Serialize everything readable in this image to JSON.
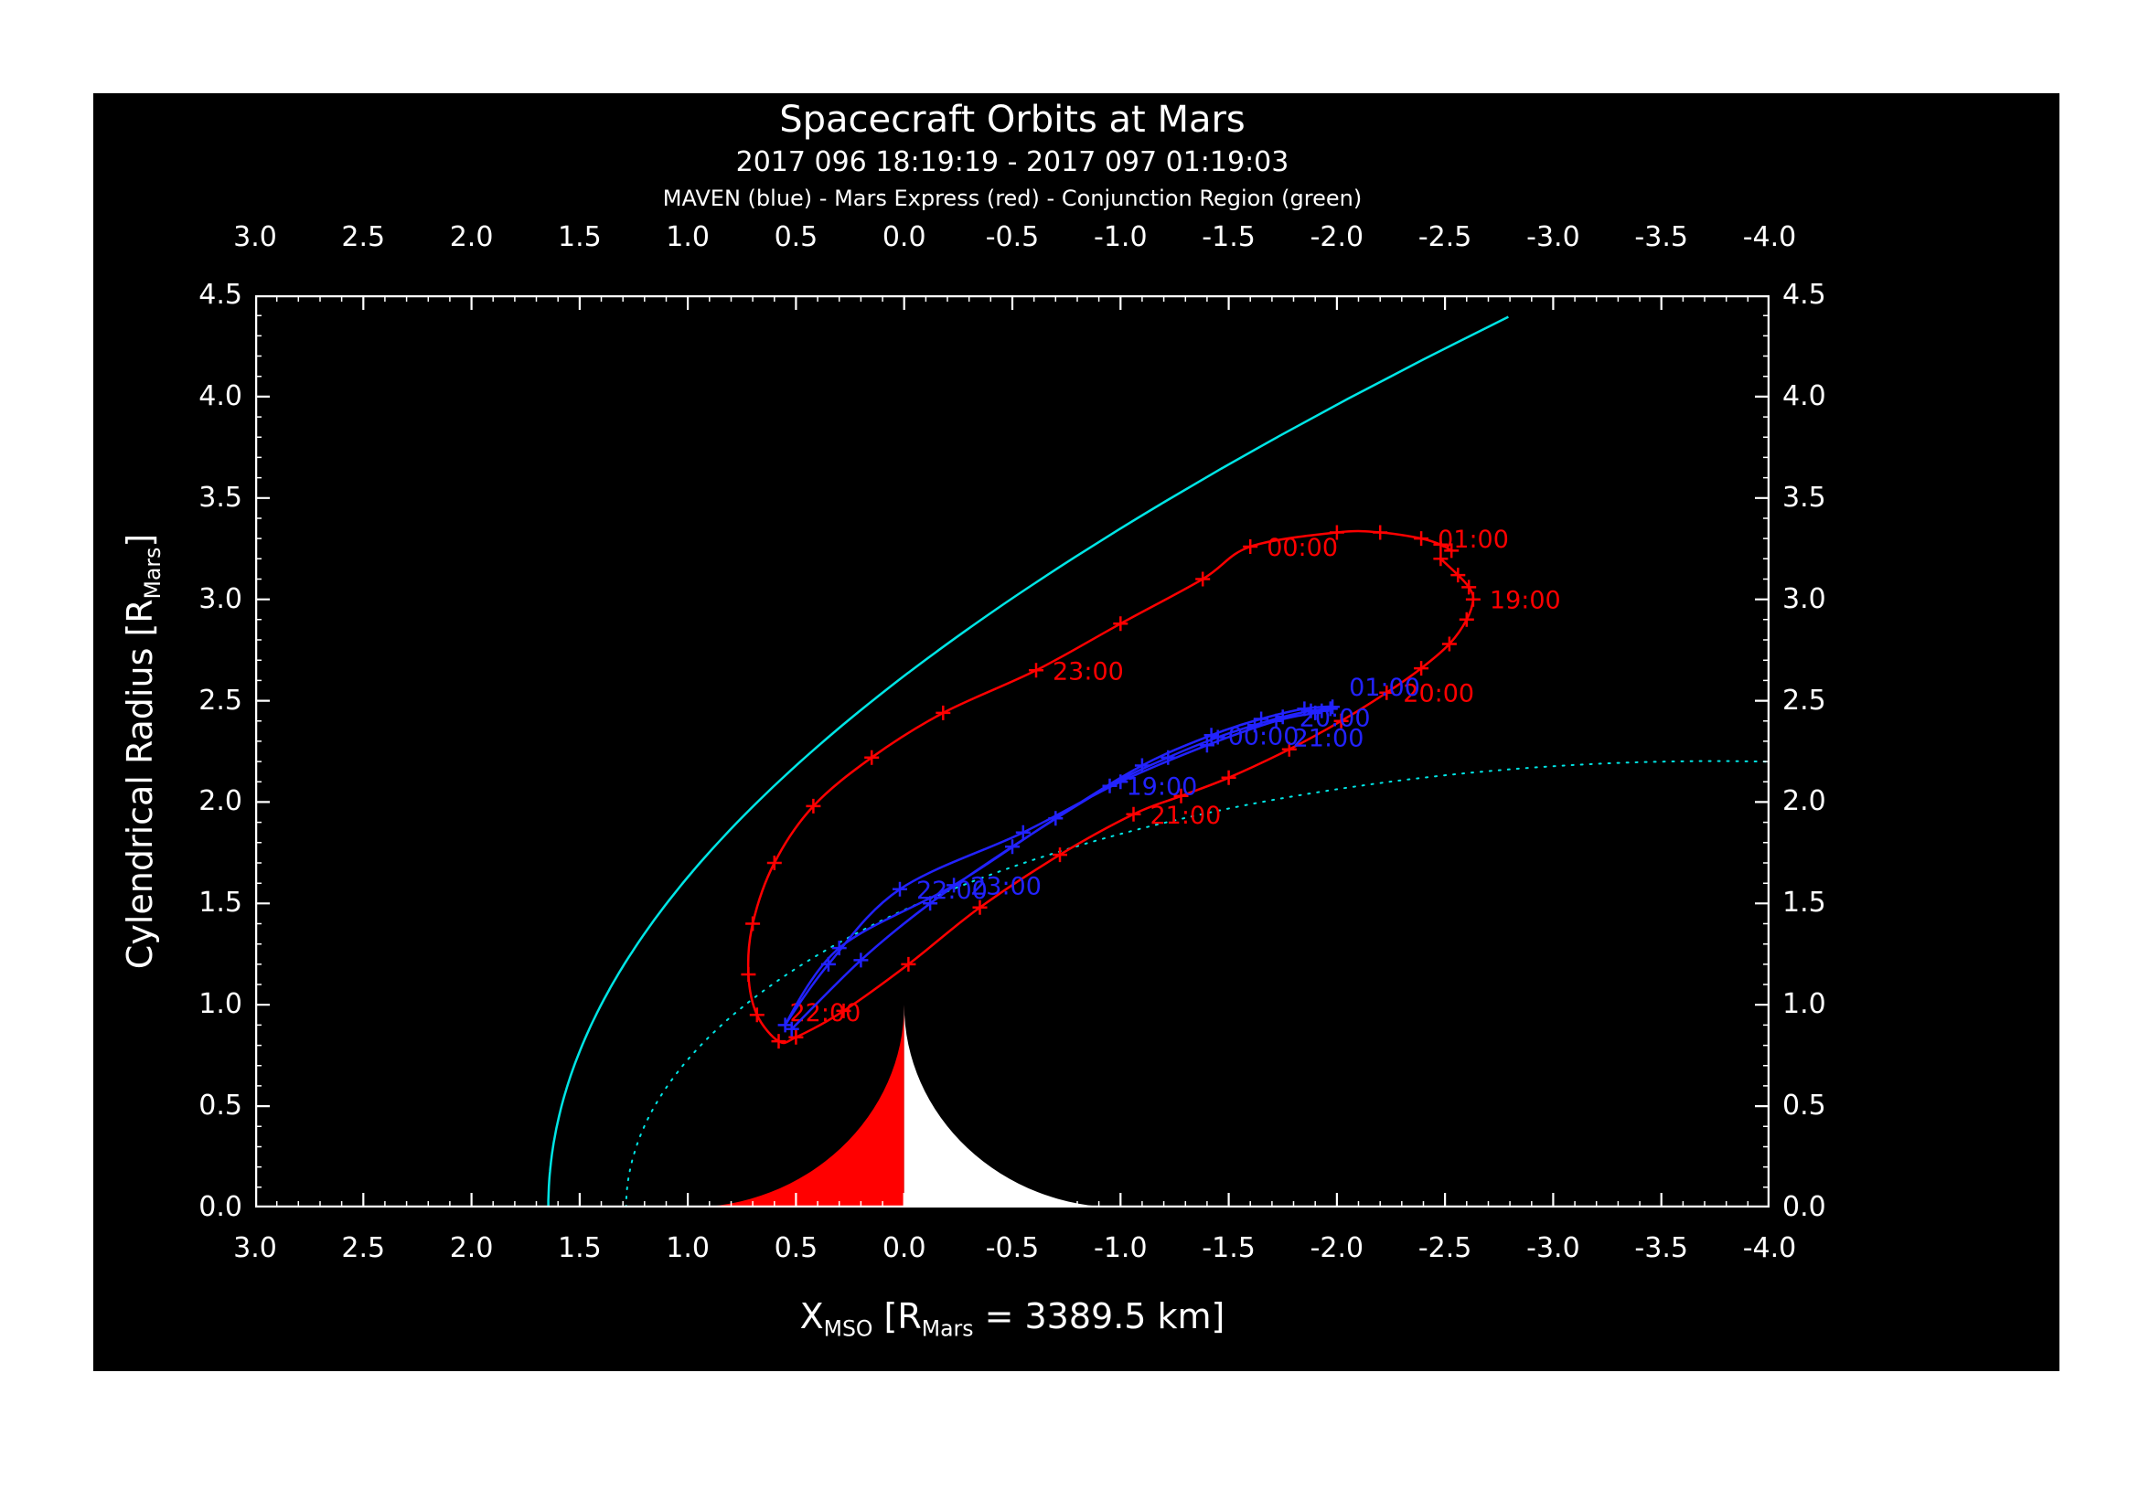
{
  "header": {
    "title": "Spacecraft Orbits at Mars",
    "subtitle": "2017 096 18:19:19 - 2017 097 01:19:03",
    "legend": "MAVEN (blue) - Mars Express (red) - Conjunction Region (green)"
  },
  "axes": {
    "x_title": {
      "pre": "X",
      "sub1": "MSO",
      "mid": " [R",
      "sub2": "Mars",
      "post": " = 3389.5 km]"
    },
    "y_title": {
      "pre": "Cylendrical Radius [R",
      "sub": "Mars",
      "post": "]"
    }
  },
  "chart_data": {
    "type": "line",
    "title": "Spacecraft Orbits at Mars",
    "subtitle": "2017 096 18:19:19 - 2017 097 01:19:03",
    "legend_line": "MAVEN (blue) - Mars Express (red) - Conjunction Region (green)",
    "background": "#000000",
    "frame_color": "#ffffff",
    "x_axis": {
      "label": "X_MSO [R_Mars = 3389.5 km]",
      "range": [
        3,
        -4
      ],
      "tick_values": [
        3.0,
        2.5,
        2.0,
        1.5,
        1.0,
        0.5,
        0.0,
        -0.5,
        -1.0,
        -1.5,
        -2.0,
        -2.5,
        -3.0,
        -3.5,
        -4.0
      ],
      "tick_labels": [
        "3.0",
        "2.5",
        "2.0",
        "1.5",
        "1.0",
        "0.5",
        "0.0",
        "-0.5",
        "-1.0",
        "-1.5",
        "-2.0",
        "-2.5",
        "-3.0",
        "-3.5",
        "-4.0"
      ],
      "minor_step": 0.1
    },
    "y_axis": {
      "label": "Cylendrical Radius [R_Mars]",
      "range": [
        0,
        4.5
      ],
      "tick_values": [
        0.0,
        0.5,
        1.0,
        1.5,
        2.0,
        2.5,
        3.0,
        3.5,
        4.0,
        4.5
      ],
      "tick_labels": [
        "0.0",
        "0.5",
        "1.0",
        "1.5",
        "2.0",
        "2.5",
        "3.0",
        "3.5",
        "4.0",
        "4.5"
      ],
      "minor_step": 0.1
    },
    "mars": {
      "radius": 1.0,
      "day_color": "#ff0000",
      "night_color": "#ffffff"
    },
    "series": [
      {
        "name": "bow-shock",
        "color": "#00e5e5",
        "line": "solid",
        "width": 2.5,
        "conic": {
          "x0": 0.64,
          "L": 2.04,
          "e": 1.03,
          "theta_max_deg": 128
        }
      },
      {
        "name": "magnetic-pileup-boundary",
        "color": "#00e5e5",
        "line": "dotted",
        "width": 2,
        "conic": {
          "x0": 0.78,
          "L": 0.96,
          "e": 0.9,
          "theta_max_deg": 157
        }
      },
      {
        "name": "Mars Express",
        "color": "#ff0000",
        "line": "solid",
        "width": 2.5,
        "marker": "plus",
        "points": [
          [
            -2.48,
            3.2
          ],
          [
            -2.56,
            3.12
          ],
          [
            -2.61,
            3.06
          ],
          [
            -2.63,
            3.0
          ],
          [
            -2.6,
            2.9
          ],
          [
            -2.52,
            2.78
          ],
          [
            -2.39,
            2.66
          ],
          [
            -2.23,
            2.54
          ],
          [
            -2.02,
            2.4
          ],
          [
            -1.78,
            2.26
          ],
          [
            -1.5,
            2.12
          ],
          [
            -1.28,
            2.03
          ],
          [
            -1.06,
            1.94
          ],
          [
            -0.72,
            1.74
          ],
          [
            -0.35,
            1.48
          ],
          [
            -0.02,
            1.2
          ],
          [
            0.28,
            0.97
          ],
          [
            0.5,
            0.84
          ],
          [
            0.58,
            0.82
          ],
          [
            0.68,
            0.95
          ],
          [
            0.72,
            1.15
          ],
          [
            0.7,
            1.4
          ],
          [
            0.6,
            1.7
          ],
          [
            0.42,
            1.98
          ],
          [
            0.15,
            2.22
          ],
          [
            -0.18,
            2.44
          ],
          [
            -0.61,
            2.65
          ],
          [
            -1.0,
            2.88
          ],
          [
            -1.38,
            3.1
          ],
          [
            -1.6,
            3.26
          ],
          [
            -2.0,
            3.33
          ],
          [
            -2.2,
            3.33
          ],
          [
            -2.39,
            3.3
          ],
          [
            -2.48,
            3.27
          ],
          [
            -2.53,
            3.24
          ]
        ],
        "time_labels": [
          {
            "t": "19:00",
            "x": -2.63,
            "r": 3.0
          },
          {
            "t": "20:00",
            "x": -2.23,
            "r": 2.54
          },
          {
            "t": "21:00",
            "x": -1.06,
            "r": 1.94
          },
          {
            "t": "22:00",
            "x": 0.58,
            "r": 0.82,
            "dx": 12,
            "dy": -22
          },
          {
            "t": "23:00",
            "x": -0.61,
            "r": 2.65
          },
          {
            "t": "00:00",
            "x": -1.6,
            "r": 3.26
          },
          {
            "t": "01:00",
            "x": -2.39,
            "r": 3.3
          }
        ]
      },
      {
        "name": "MAVEN",
        "color": "#2222ff",
        "line": "solid",
        "width": 2.5,
        "marker": "plus",
        "points": [
          [
            0.52,
            0.88
          ],
          [
            0.2,
            1.22
          ],
          [
            -0.12,
            1.5
          ],
          [
            -0.5,
            1.78
          ],
          [
            -0.95,
            2.08
          ],
          [
            -1.22,
            2.22
          ],
          [
            -1.45,
            2.32
          ],
          [
            -1.62,
            2.38
          ],
          [
            -1.75,
            2.42
          ],
          [
            -1.88,
            2.45
          ],
          [
            -1.97,
            2.46
          ],
          [
            -1.9,
            2.44
          ],
          [
            -1.72,
            2.4
          ],
          [
            -1.4,
            2.28
          ],
          [
            -1.0,
            2.1
          ],
          [
            -0.55,
            1.85
          ],
          [
            0.02,
            1.57
          ],
          [
            0.35,
            1.2
          ],
          [
            0.55,
            0.9
          ],
          [
            0.3,
            1.28
          ],
          [
            -0.23,
            1.59
          ],
          [
            -0.7,
            1.92
          ],
          [
            -1.1,
            2.18
          ],
          [
            -1.42,
            2.33
          ],
          [
            -1.65,
            2.41
          ],
          [
            -1.85,
            2.46
          ],
          [
            -1.98,
            2.47
          ],
          [
            -1.93,
            2.45
          ]
        ],
        "time_labels": [
          {
            "t": "19:00",
            "x": -0.95,
            "r": 2.08
          },
          {
            "t": "20:00",
            "x": -1.75,
            "r": 2.42
          },
          {
            "t": "21:00",
            "x": -1.72,
            "r": 2.4,
            "dy": 28
          },
          {
            "t": "22:00",
            "x": 0.02,
            "r": 1.57
          },
          {
            "t": "23:00",
            "x": -0.23,
            "r": 1.59
          },
          {
            "t": "00:00",
            "x": -1.42,
            "r": 2.33
          },
          {
            "t": "01:00",
            "x": -1.98,
            "r": 2.47,
            "dy": -12
          }
        ]
      }
    ]
  }
}
